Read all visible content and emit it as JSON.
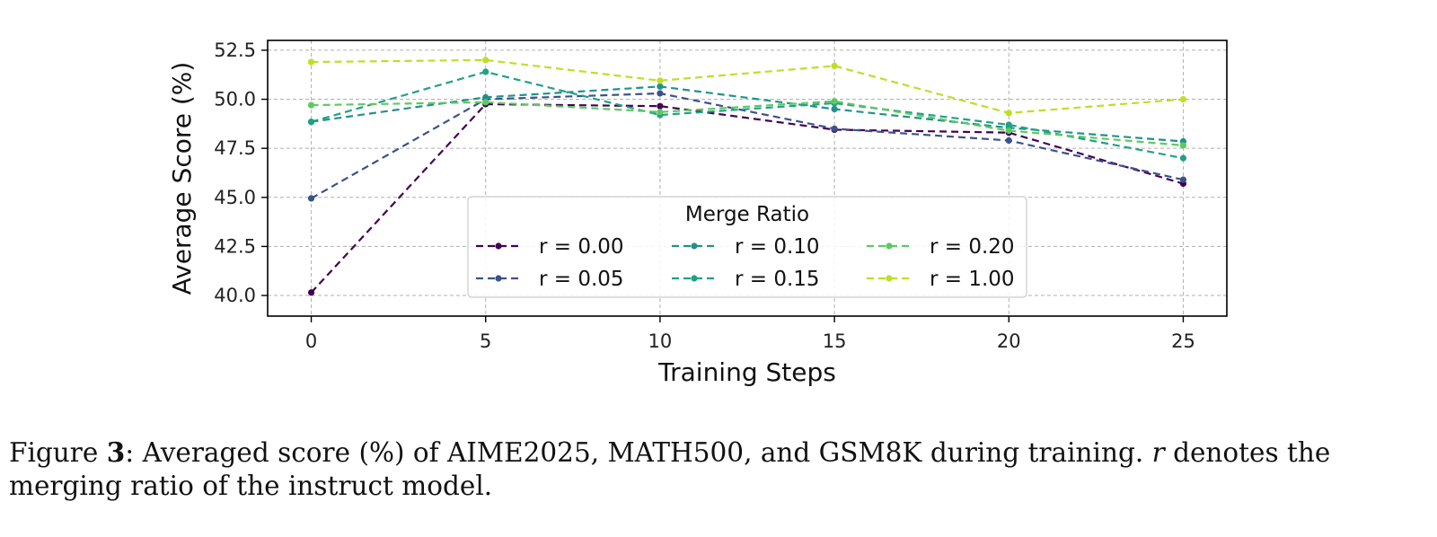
{
  "chart_data": {
    "type": "line",
    "xlabel": "Training Steps",
    "ylabel": "Average Score (%)",
    "x": [
      0,
      5,
      10,
      15,
      20,
      25
    ],
    "xticks": [
      "0",
      "5",
      "10",
      "15",
      "20",
      "25"
    ],
    "yticks": [
      "40.0",
      "42.5",
      "45.0",
      "47.5",
      "50.0",
      "52.5"
    ],
    "xlim": [
      -1.25,
      26.25
    ],
    "ylim": [
      38.95,
      53.0
    ],
    "grid": true,
    "line_style": "dashed",
    "marker": "dot",
    "legend": {
      "title": "Merge Ratio",
      "position": "lower-center",
      "columns": 3
    },
    "series": [
      {
        "name": "r = 0.00",
        "color": "#440154",
        "values": [
          40.15,
          49.75,
          49.65,
          48.45,
          48.3,
          45.7
        ]
      },
      {
        "name": "r = 0.05",
        "color": "#3b528b",
        "values": [
          44.95,
          50.0,
          50.3,
          48.5,
          47.9,
          45.9
        ]
      },
      {
        "name": "r = 0.10",
        "color": "#21918c",
        "values": [
          48.85,
          50.1,
          50.65,
          49.5,
          48.55,
          47.85
        ]
      },
      {
        "name": "r = 0.15",
        "color": "#1fa187",
        "values": [
          48.85,
          51.4,
          49.2,
          49.8,
          48.7,
          47.0
        ]
      },
      {
        "name": "r = 0.20",
        "color": "#5ec962",
        "values": [
          49.7,
          49.85,
          49.35,
          49.9,
          48.4,
          47.65
        ]
      },
      {
        "name": "r = 1.00",
        "color": "#bddf26",
        "values": [
          51.9,
          52.0,
          50.95,
          51.7,
          49.3,
          50.0
        ]
      }
    ]
  },
  "caption": {
    "label": "Figure ",
    "number": "3",
    "text_a": ": Averaged score (%) of AIME2025, MATH500, and GSM8K during training. ",
    "symbol": "r",
    "text_b": " denotes the merging ratio of the instruct model."
  }
}
